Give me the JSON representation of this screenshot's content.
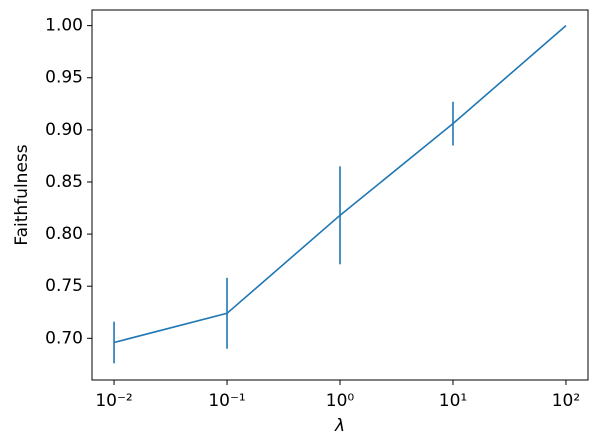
{
  "chart_data": {
    "type": "line",
    "xlabel": "λ",
    "ylabel": "Faithfulness",
    "x": [
      0.01,
      0.1,
      1,
      10,
      100
    ],
    "series": [
      {
        "name": "Faithfulness",
        "color": "#1f77b4",
        "values": [
          0.696,
          0.724,
          0.818,
          0.906,
          1.0
        ],
        "errors": [
          0.02,
          0.034,
          0.047,
          0.021,
          0
        ]
      }
    ],
    "xscale": "log",
    "xlim": [
      0.00638,
      156.7
    ],
    "ylim": [
      0.66,
      1.015
    ],
    "xticks": [
      {
        "value": 0.01,
        "label": "10⁻²"
      },
      {
        "value": 0.1,
        "label": "10⁻¹"
      },
      {
        "value": 1,
        "label": "10⁰"
      },
      {
        "value": 10,
        "label": "10¹"
      },
      {
        "value": 100,
        "label": "10²"
      }
    ],
    "yticks": [
      {
        "value": 0.7,
        "label": "0.70"
      },
      {
        "value": 0.75,
        "label": "0.75"
      },
      {
        "value": 0.8,
        "label": "0.80"
      },
      {
        "value": 0.85,
        "label": "0.85"
      },
      {
        "value": 0.9,
        "label": "0.90"
      },
      {
        "value": 0.95,
        "label": "0.95"
      },
      {
        "value": 1.0,
        "label": "1.00"
      }
    ],
    "grid": false
  }
}
